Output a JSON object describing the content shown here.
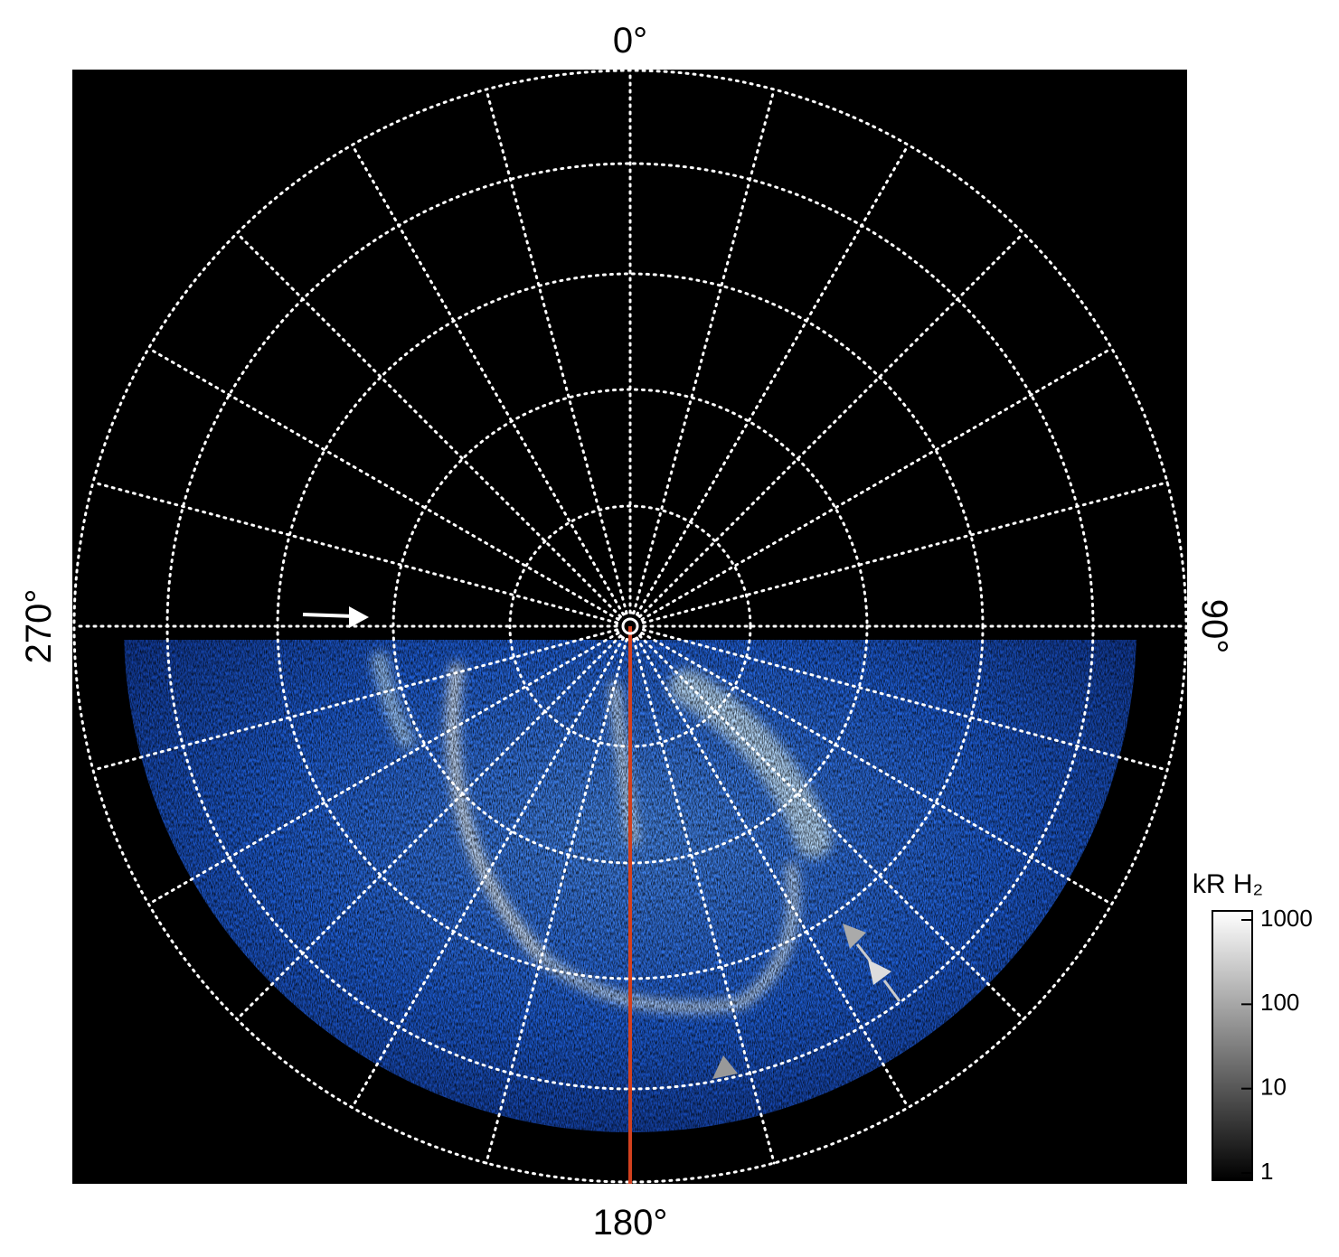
{
  "labels": {
    "top": "0°",
    "right": "90°",
    "bottom": "180°",
    "left": "270°"
  },
  "colorbar": {
    "label": "kR H₂",
    "lim": [
      1,
      1000
    ],
    "log": true,
    "ticks": [
      1,
      10,
      100,
      1000
    ]
  }
}
